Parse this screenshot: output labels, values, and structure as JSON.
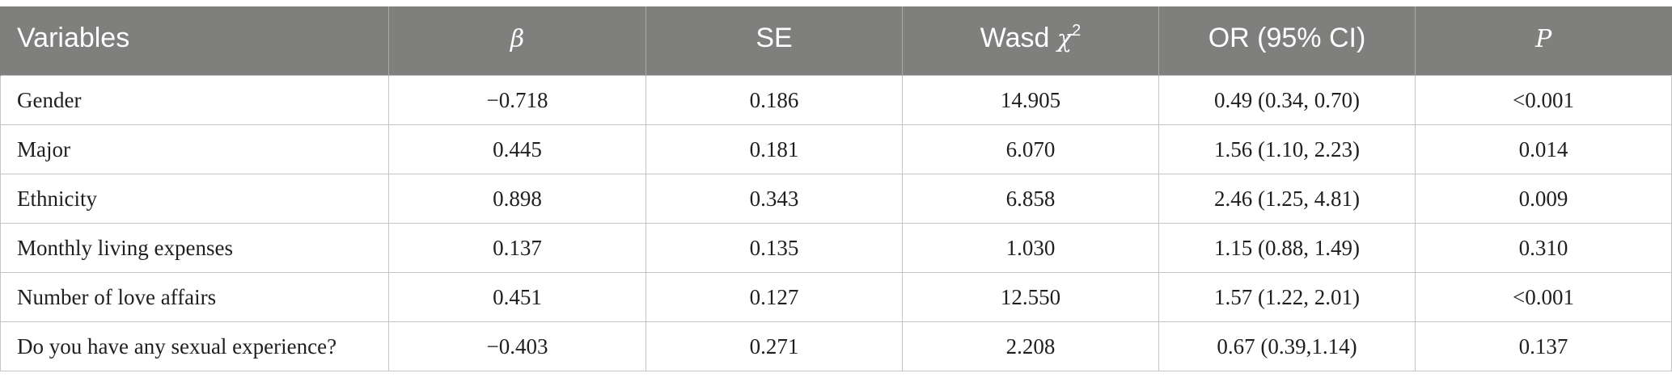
{
  "table": {
    "headers": {
      "variables": "Variables",
      "beta": "β",
      "se": "SE",
      "wasd_prefix": "Wasd ",
      "wasd_symbol": "χ",
      "wasd_sup": "2",
      "or": "OR (95% CI)",
      "p": "P"
    },
    "rows": [
      {
        "variable": "Gender",
        "beta": "−0.718",
        "se": "0.186",
        "wasd": "14.905",
        "or": "0.49 (0.34, 0.70)",
        "p": "<0.001"
      },
      {
        "variable": "Major",
        "beta": "0.445",
        "se": "0.181",
        "wasd": "6.070",
        "or": "1.56 (1.10, 2.23)",
        "p": "0.014"
      },
      {
        "variable": "Ethnicity",
        "beta": "0.898",
        "se": "0.343",
        "wasd": "6.858",
        "or": "2.46 (1.25, 4.81)",
        "p": "0.009"
      },
      {
        "variable": "Monthly living expenses",
        "beta": "0.137",
        "se": "0.135",
        "wasd": "1.030",
        "or": "1.15 (0.88, 1.49)",
        "p": "0.310"
      },
      {
        "variable": "Number of love affairs",
        "beta": "0.451",
        "se": "0.127",
        "wasd": "12.550",
        "or": "1.57 (1.22, 2.01)",
        "p": "<0.001"
      },
      {
        "variable": "Do you have any sexual experience?",
        "beta": "−0.403",
        "se": "0.271",
        "wasd": "2.208",
        "or": "0.67 (0.39,1.14)",
        "p": "0.137"
      }
    ]
  }
}
